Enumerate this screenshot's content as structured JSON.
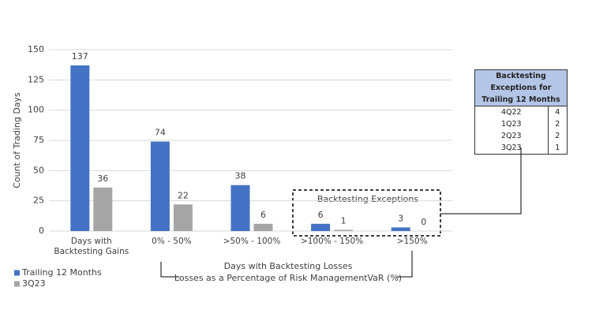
{
  "chart_data": {
    "type": "bar",
    "y_label": "Count of Trading Days",
    "categories": [
      "Days with Backtesting Gains",
      "0% - 50%",
      ">50% - 100%",
      ">100% - 150%",
      ">150%"
    ],
    "series": [
      {
        "name": "Trailing 12 Months",
        "color": "#4472c4",
        "values": [
          137,
          74,
          38,
          6,
          3
        ]
      },
      {
        "name": "3Q23",
        "color": "#a5a5a5",
        "values": [
          36,
          22,
          6,
          1,
          0
        ]
      }
    ],
    "ylim": [
      0,
      150
    ],
    "yticks": [
      0,
      25,
      50,
      75,
      100,
      125,
      150
    ],
    "grid": true,
    "annotations": {
      "losses_title": "Days with Backtesting Losses",
      "losses_subtitle": "Losses as a Percentage of Risk ManagementVaR (%)",
      "exceptions_box": "Backtesting Exceptions"
    }
  },
  "table": {
    "title": "Backtesting Exceptions for Trailing 12 Months",
    "rows": [
      [
        "4Q22",
        4
      ],
      [
        "1Q23",
        2
      ],
      [
        "2Q23",
        2
      ],
      [
        "3Q23",
        1
      ]
    ]
  }
}
